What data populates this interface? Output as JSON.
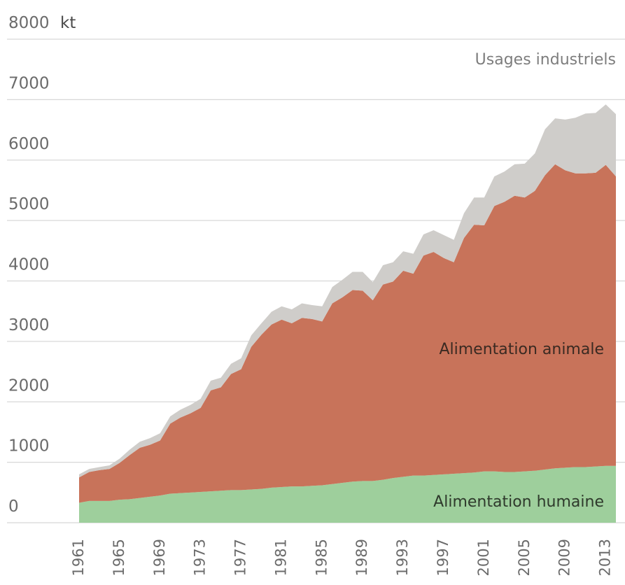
{
  "chart_data": {
    "type": "area",
    "stacked": true,
    "unit": "kt",
    "grid": true,
    "ylim": [
      0,
      8000
    ],
    "yticks": [
      0,
      1000,
      2000,
      3000,
      4000,
      5000,
      6000,
      7000,
      8000
    ],
    "xlim": [
      1961,
      2014
    ],
    "xtick_labels": [
      "1961",
      "1965",
      "1969",
      "1973",
      "1977",
      "1981",
      "1985",
      "1989",
      "1993",
      "1997",
      "2001",
      "2005",
      "2009",
      "2013"
    ],
    "x": [
      1961,
      1962,
      1963,
      1964,
      1965,
      1966,
      1967,
      1968,
      1969,
      1970,
      1971,
      1972,
      1973,
      1974,
      1975,
      1976,
      1977,
      1978,
      1979,
      1980,
      1981,
      1982,
      1983,
      1984,
      1985,
      1986,
      1987,
      1988,
      1989,
      1990,
      1991,
      1992,
      1993,
      1994,
      1995,
      1996,
      1997,
      1998,
      1999,
      2000,
      2001,
      2002,
      2003,
      2004,
      2005,
      2006,
      2007,
      2008,
      2009,
      2010,
      2011,
      2012,
      2013,
      2014
    ],
    "series": [
      {
        "name": "Alimentation humaine",
        "color": "#9ecf9c",
        "values": [
          330,
          360,
          360,
          360,
          380,
          390,
          410,
          430,
          450,
          480,
          490,
          500,
          510,
          520,
          530,
          540,
          540,
          550,
          560,
          580,
          590,
          600,
          600,
          610,
          620,
          640,
          660,
          680,
          690,
          690,
          710,
          740,
          760,
          780,
          780,
          790,
          800,
          810,
          820,
          830,
          850,
          850,
          840,
          840,
          850,
          860,
          880,
          900,
          910,
          920,
          920,
          930,
          940,
          940
        ]
      },
      {
        "name": "Alimentation animale",
        "color": "#c8735a",
        "values": [
          420,
          480,
          510,
          530,
          610,
          730,
          830,
          860,
          910,
          1160,
          1250,
          1310,
          1390,
          1670,
          1710,
          1920,
          2000,
          2360,
          2550,
          2700,
          2770,
          2700,
          2790,
          2760,
          2710,
          2990,
          3070,
          3170,
          3150,
          2990,
          3230,
          3250,
          3410,
          3340,
          3640,
          3690,
          3580,
          3500,
          3890,
          4100,
          4070,
          4390,
          4470,
          4570,
          4530,
          4630,
          4870,
          5030,
          4920,
          4860,
          4860,
          4860,
          4980,
          4790
        ]
      },
      {
        "name": "Usages industriels",
        "color": "#cfcdca",
        "values": [
          50,
          50,
          50,
          60,
          70,
          90,
          100,
          110,
          120,
          120,
          130,
          140,
          150,
          160,
          160,
          170,
          180,
          190,
          190,
          210,
          220,
          230,
          240,
          230,
          250,
          270,
          290,
          300,
          310,
          300,
          320,
          320,
          320,
          330,
          350,
          360,
          380,
          370,
          410,
          450,
          460,
          490,
          500,
          520,
          560,
          620,
          760,
          760,
          840,
          920,
          990,
          990,
          1000,
          1030
        ]
      }
    ]
  }
}
